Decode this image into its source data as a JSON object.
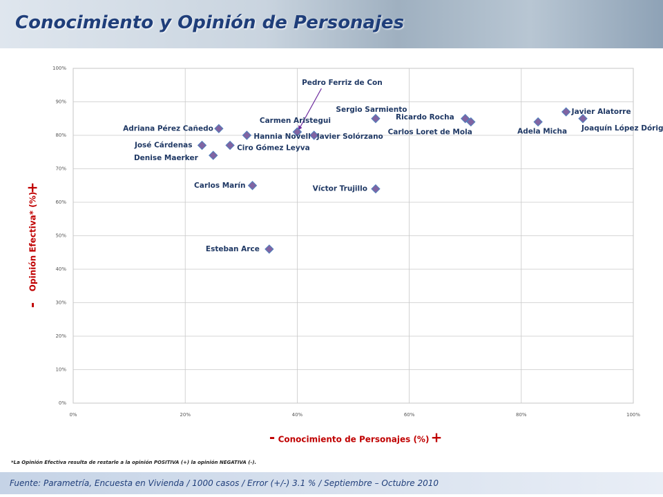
{
  "chart_data": {
    "type": "scatter",
    "title": "Conocimiento y Opinión de Personajes",
    "x_label": "Conocimiento de Personajes (%)",
    "y_label": "Opinión Efectiva* (%)",
    "axis_low_sign": "-",
    "axis_high_sign": "+",
    "footnote": "*La Opinión Efectiva resulta de restarle a la opinión POSITIVA (+) la opinión NEGATIVA (-).",
    "source": "Fuente: Parametría, Encuesta en Vivienda / 1000 casos / Error (+/-) 3.1 % / Septiembre – Octubre 2010",
    "color": "#8064a2",
    "edge_color": "#4f81bd",
    "grid": true,
    "xlim": [
      0,
      100
    ],
    "ylim": [
      0,
      100
    ],
    "xticks": [
      {
        "value": 0,
        "label": "0%"
      },
      {
        "value": 20,
        "label": "20%"
      },
      {
        "value": 40,
        "label": "40%"
      },
      {
        "value": 60,
        "label": "60%"
      },
      {
        "value": 80,
        "label": "80%"
      },
      {
        "value": 100,
        "label": "100%"
      }
    ],
    "yticks": [
      {
        "value": 0,
        "label": "0%"
      },
      {
        "value": 10,
        "label": "10%"
      },
      {
        "value": 20,
        "label": "20%"
      },
      {
        "value": 30,
        "label": "30%"
      },
      {
        "value": 40,
        "label": "40%"
      },
      {
        "value": 50,
        "label": "50%"
      },
      {
        "value": 60,
        "label": "60%"
      },
      {
        "value": 70,
        "label": "70%"
      },
      {
        "value": 80,
        "label": "80%"
      },
      {
        "value": 90,
        "label": "90%"
      },
      {
        "value": 100,
        "label": "100%"
      }
    ],
    "points": [
      {
        "label": "Pedro Ferriz de Con",
        "x": 40,
        "y": 81
      },
      {
        "label": "Carmen Aristegui",
        "x": 40,
        "y": 81
      },
      {
        "label": "Adriana Pérez Cañedo",
        "x": 26,
        "y": 82
      },
      {
        "label": "Hannia Novell",
        "x": 31,
        "y": 80
      },
      {
        "label": "José Cárdenas",
        "x": 23,
        "y": 77
      },
      {
        "label": "Ciro Gómez Leyva",
        "x": 28,
        "y": 77
      },
      {
        "label": "Denise Maerker",
        "x": 25,
        "y": 74
      },
      {
        "label": "Carlos Marín",
        "x": 32,
        "y": 65
      },
      {
        "label": "Esteban Arce",
        "x": 35,
        "y": 46
      },
      {
        "label": "Javier Solórzano",
        "x": 43,
        "y": 80
      },
      {
        "label": "Sergio Sarmiento",
        "x": 54,
        "y": 85
      },
      {
        "label": "Víctor Trujillo",
        "x": 54,
        "y": 64
      },
      {
        "label": "Ricardo Rocha",
        "x": 70,
        "y": 85
      },
      {
        "label": "Carlos Loret de Mola",
        "x": 71,
        "y": 84
      },
      {
        "label": "Adela Micha",
        "x": 83,
        "y": 84
      },
      {
        "label": "Javier Alatorre",
        "x": 88,
        "y": 87
      },
      {
        "label": "Joaquín López Dóriga",
        "x": 91,
        "y": 85
      }
    ]
  }
}
